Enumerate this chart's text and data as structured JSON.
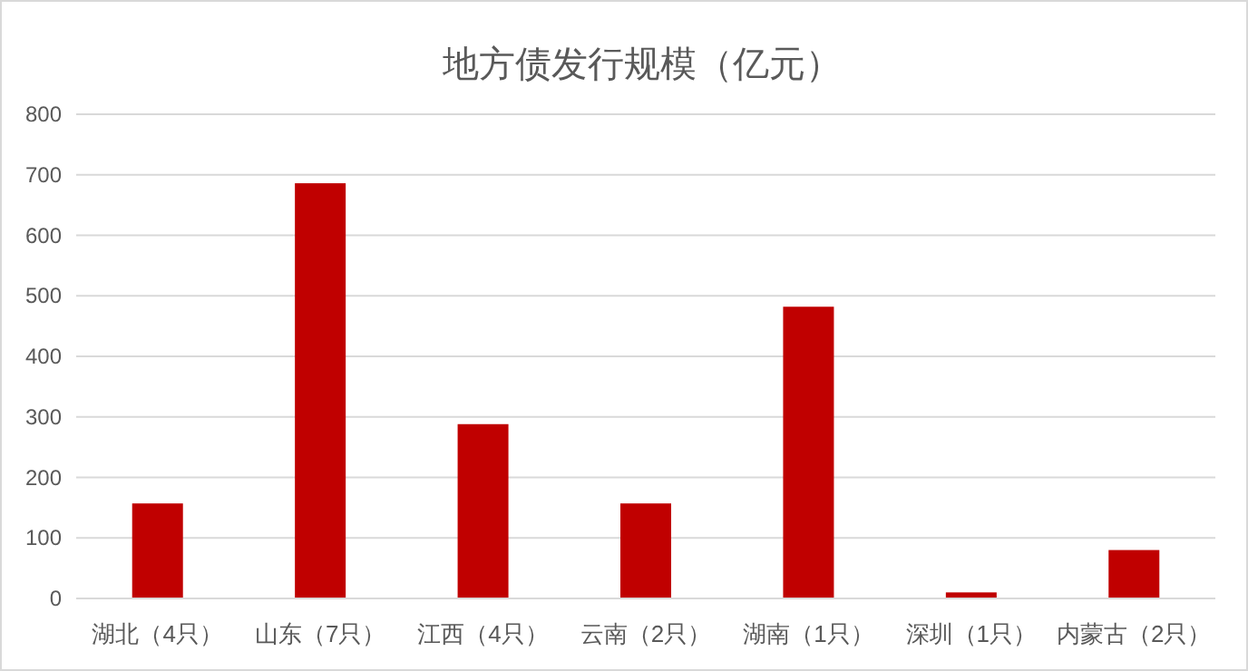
{
  "chart_data": {
    "type": "bar",
    "title": "地方债发行规模（亿元）",
    "categories": [
      "湖北（4只）",
      "山东（7只）",
      "江西（4只）",
      "云南（2只）",
      "湖南（1只）",
      "深圳（1只）",
      "内蒙古（2只）"
    ],
    "values": [
      157,
      686,
      288,
      157,
      482,
      10,
      80
    ],
    "color": "#c00000",
    "ylim": [
      0,
      800
    ],
    "yticks": [
      0,
      100,
      200,
      300,
      400,
      500,
      600,
      700,
      800
    ],
    "grid": "y"
  }
}
